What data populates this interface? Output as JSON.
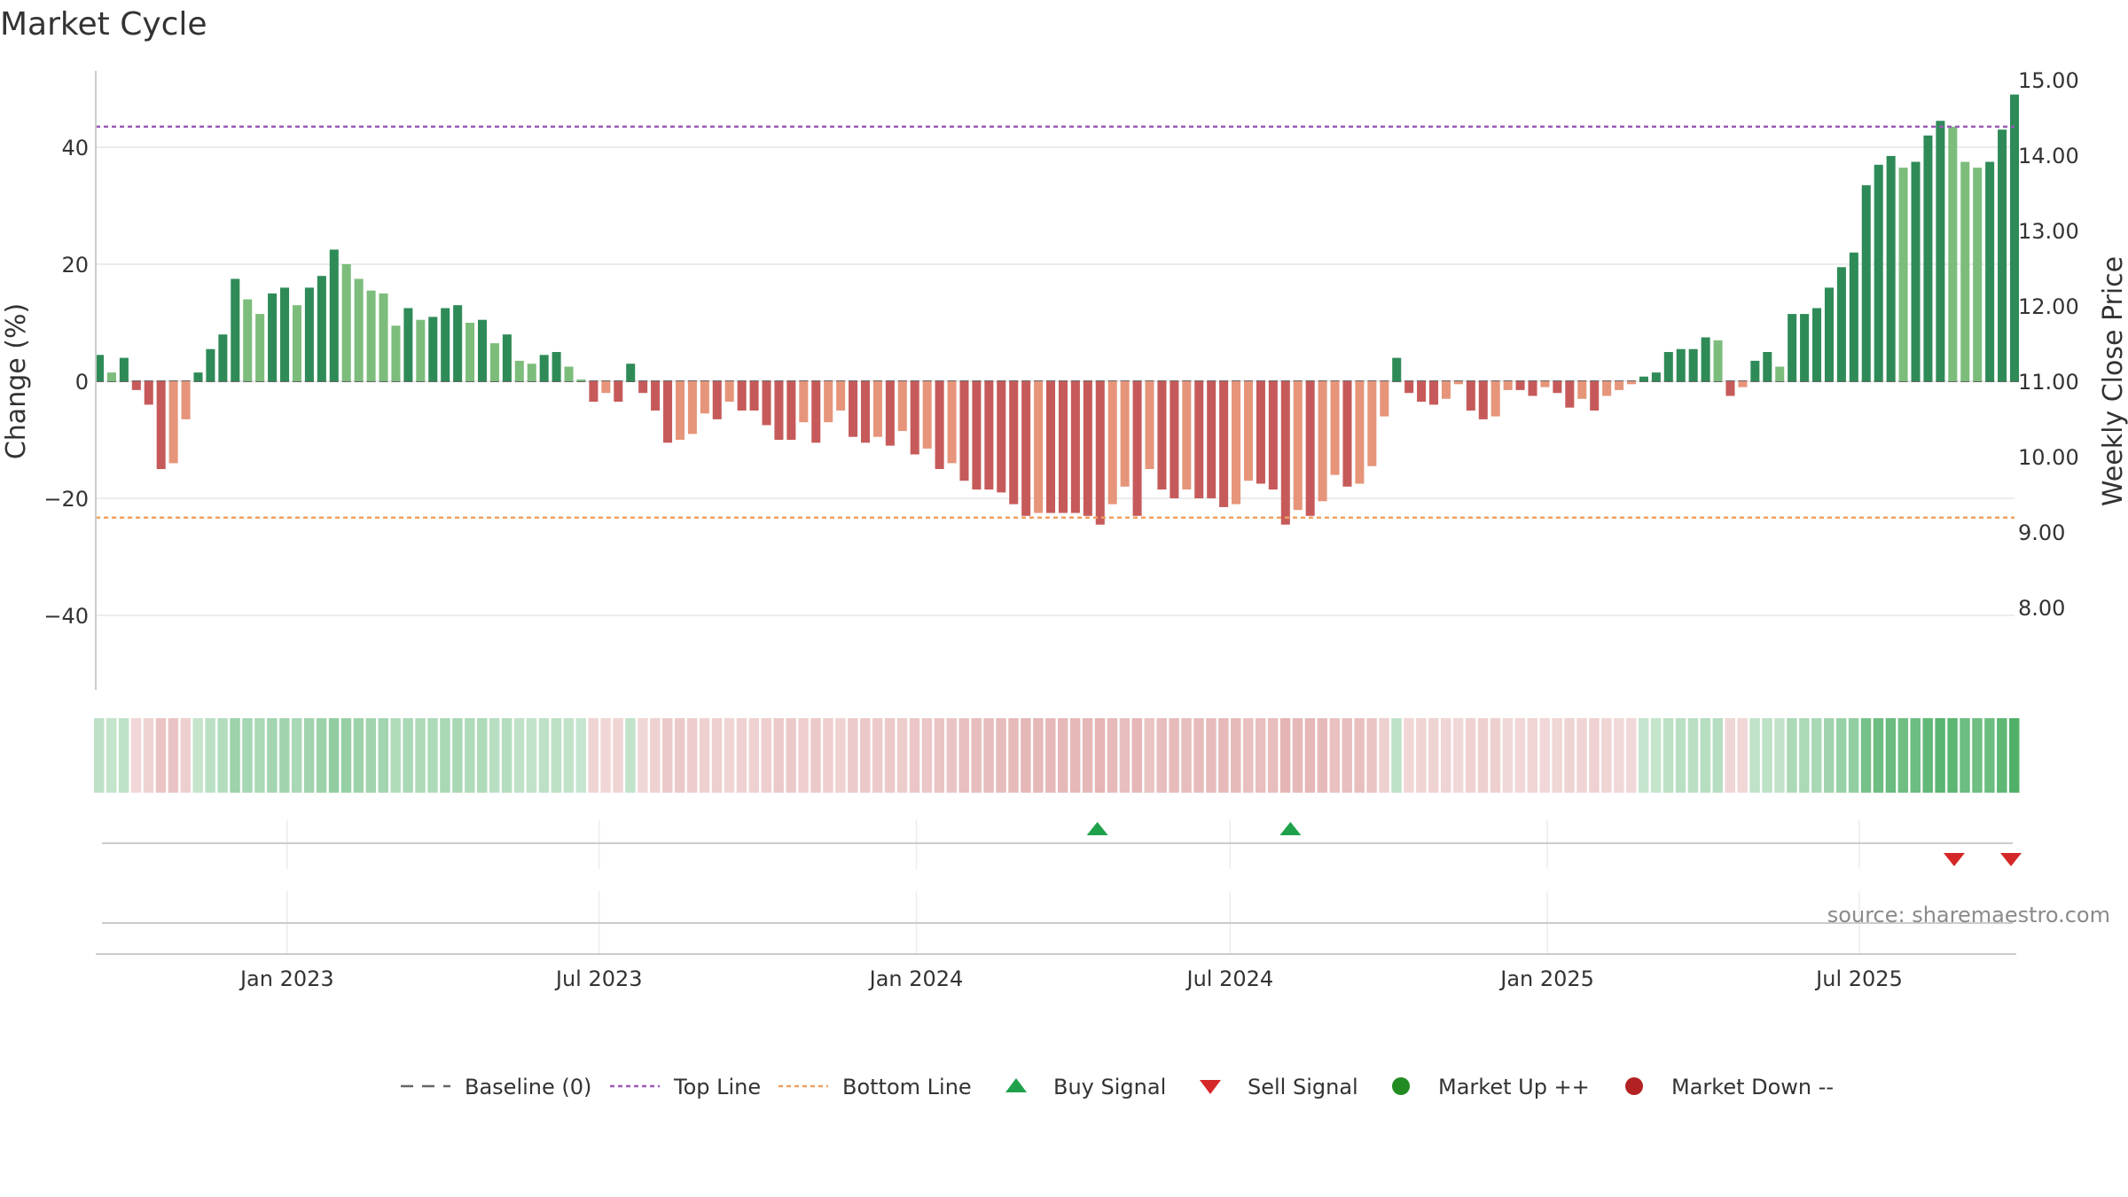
{
  "chart_data": {
    "type": "bar",
    "title": "Market Cycle",
    "ylabel": "Change (%)",
    "y2label": "Weekly Close Price",
    "ylim": [
      -53,
      53
    ],
    "y2lim": [
      7.0,
      15.3
    ],
    "yticks": [
      "40",
      "20",
      "0",
      "−20",
      "−40"
    ],
    "yticks_values": [
      40,
      20,
      0,
      -20,
      -40
    ],
    "y2ticks": [
      "15.00",
      "14.00",
      "13.00",
      "12.00",
      "11.00",
      "10.00",
      "9.00",
      "8.00"
    ],
    "y2ticks_values": [
      15,
      14,
      13,
      12,
      11,
      10,
      9,
      8
    ],
    "x_start": "2022-09-12",
    "x_end": "2025-09-29",
    "xticks": [
      {
        "date": "2023-01-01",
        "label": "Jan 2023"
      },
      {
        "date": "2023-07-01",
        "label": "Jul 2023"
      },
      {
        "date": "2024-01-01",
        "label": "Jan 2024"
      },
      {
        "date": "2024-07-01",
        "label": "Jul 2024"
      },
      {
        "date": "2025-01-01",
        "label": "Jan 2025"
      },
      {
        "date": "2025-07-01",
        "label": "Jul 2025"
      }
    ],
    "first_week": "2022-09-12",
    "week_step_days": 7,
    "values": [
      4.5,
      1.5,
      4.0,
      -1.5,
      -4.0,
      -15.0,
      -14.0,
      -6.5,
      1.5,
      5.5,
      8.0,
      17.5,
      14.0,
      11.5,
      15.0,
      16.0,
      13.0,
      16.0,
      18.0,
      22.5,
      20.0,
      17.5,
      15.5,
      15.0,
      9.5,
      12.5,
      10.5,
      11.0,
      12.5,
      13.0,
      10.0,
      10.5,
      6.5,
      8.0,
      3.5,
      3.0,
      4.5,
      5.0,
      2.5,
      0.3,
      -3.5,
      -2.0,
      -3.5,
      3.0,
      -2.0,
      -5.0,
      -10.5,
      -10.0,
      -9.0,
      -5.5,
      -6.5,
      -3.5,
      -5.0,
      -5.0,
      -7.5,
      -10.0,
      -10.0,
      -7.0,
      -10.5,
      -7.0,
      -5.0,
      -9.5,
      -10.5,
      -9.5,
      -11.0,
      -8.5,
      -12.5,
      -11.5,
      -15.0,
      -14.0,
      -17.0,
      -18.5,
      -18.5,
      -19.0,
      -21.0,
      -23.0,
      -22.5,
      -22.5,
      -22.5,
      -22.5,
      -23.0,
      -24.5,
      -21.0,
      -18.0,
      -23.0,
      -15.0,
      -18.5,
      -20.0,
      -18.5,
      -20.0,
      -20.0,
      -21.5,
      -21.0,
      -17.0,
      -17.5,
      -18.5,
      -24.5,
      -22.0,
      -23.0,
      -20.5,
      -16.0,
      -18.0,
      -17.5,
      -14.5,
      -6.0,
      4.0,
      -2.0,
      -3.5,
      -4.0,
      -3.0,
      -0.5,
      -5.0,
      -6.5,
      -6.0,
      -1.5,
      -1.5,
      -2.5,
      -1.0,
      -2.0,
      -4.5,
      -3.0,
      -5.0,
      -2.5,
      -1.5,
      -0.5,
      0.8,
      1.5,
      5.0,
      5.5,
      5.5,
      7.5,
      7.0,
      -2.5,
      -1.0,
      3.5,
      5.0,
      2.5,
      11.5,
      11.5,
      12.5,
      16.0,
      19.5,
      22.0,
      33.5,
      37.0,
      38.5,
      36.5,
      37.5,
      42.0,
      44.5,
      43.5,
      37.5,
      36.5,
      37.5,
      43.0,
      49.0
    ],
    "top_line": 43.5,
    "bottom_line": -23.3,
    "baseline": 0,
    "buy_signals": [
      "2024-04-15",
      "2024-08-05"
    ],
    "sell_signals": [
      "2025-08-25",
      "2025-09-29"
    ],
    "series": [
      {
        "name": "Baseline (0)"
      },
      {
        "name": "Top Line"
      },
      {
        "name": "Bottom Line"
      },
      {
        "name": "Buy Signal"
      },
      {
        "name": "Sell Signal"
      },
      {
        "name": "Market Up ++"
      },
      {
        "name": "Market Down --"
      }
    ],
    "legend_position": "bottom-center",
    "grid": true,
    "source": "source: sharemaestro.com",
    "colors": {
      "up_dark": "#2e8b57",
      "up_light": "#7cbd7c",
      "down_dark": "#c65a5a",
      "down_light": "#e6957a",
      "top_line": "#9b59b6",
      "bottom_line": "#f0a060",
      "buy": "#1fa14b",
      "sell": "#d62728",
      "market_up": "#228b22",
      "market_down": "#b22222",
      "baseline": "#666666"
    }
  }
}
